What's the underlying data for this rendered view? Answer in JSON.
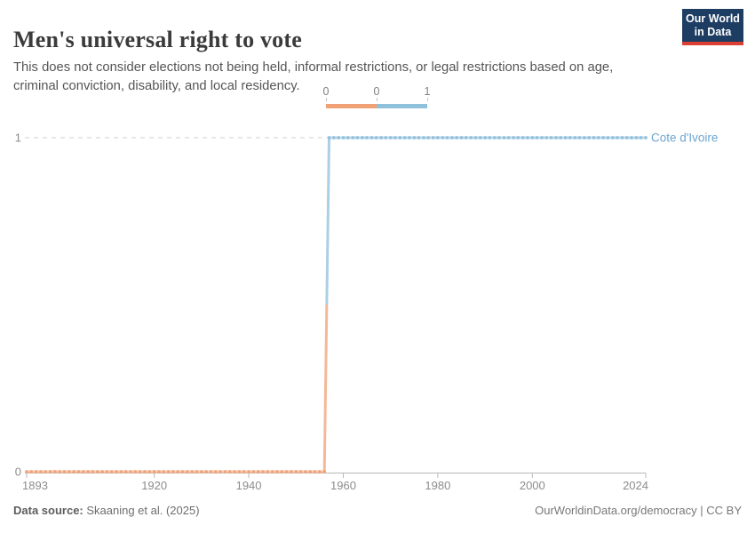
{
  "header": {
    "title": "Men's universal right to vote",
    "subtitle": "This does not consider elections not being held, informal restrictions, or legal restrictions based on age, criminal conviction, disability, and local residency.",
    "logo_line1": "Our World",
    "logo_line2": "in Data"
  },
  "legend": {
    "labels": [
      "0",
      "0",
      "1"
    ]
  },
  "chart_data": {
    "type": "line",
    "step": true,
    "title": "Men's universal right to vote",
    "entity": "Cote d'Ivoire",
    "xlim": [
      1893,
      2024
    ],
    "ylim": [
      0,
      1
    ],
    "x_ticks": [
      1893,
      1920,
      1940,
      1960,
      1980,
      2000,
      2024
    ],
    "y_ticks": [
      0,
      1
    ],
    "grid": "dashed gridline at y=1, solid axis at y=0",
    "legend_position": "top-center",
    "point_interval": "yearly",
    "value_colors": {
      "0": "#f1a176",
      "1": "#8fc0dc"
    },
    "entity_label_color": "#6ca6cf",
    "axis_text_color": "#8c8c8c",
    "gridline_color": "#d0d0d0",
    "axis_line_color": "#b9b9b9",
    "series": [
      {
        "name": "Cote d'Ivoire",
        "segments": [
          {
            "from_year": 1893,
            "to_year": 1956,
            "value": 0
          },
          {
            "from_year": 1957,
            "to_year": 2024,
            "value": 1
          }
        ]
      }
    ]
  },
  "footer": {
    "source_label": "Data source:",
    "source_value": " Skaaning et al. (2025)",
    "right_text": "OurWorldinData.org/democracy | CC BY"
  }
}
